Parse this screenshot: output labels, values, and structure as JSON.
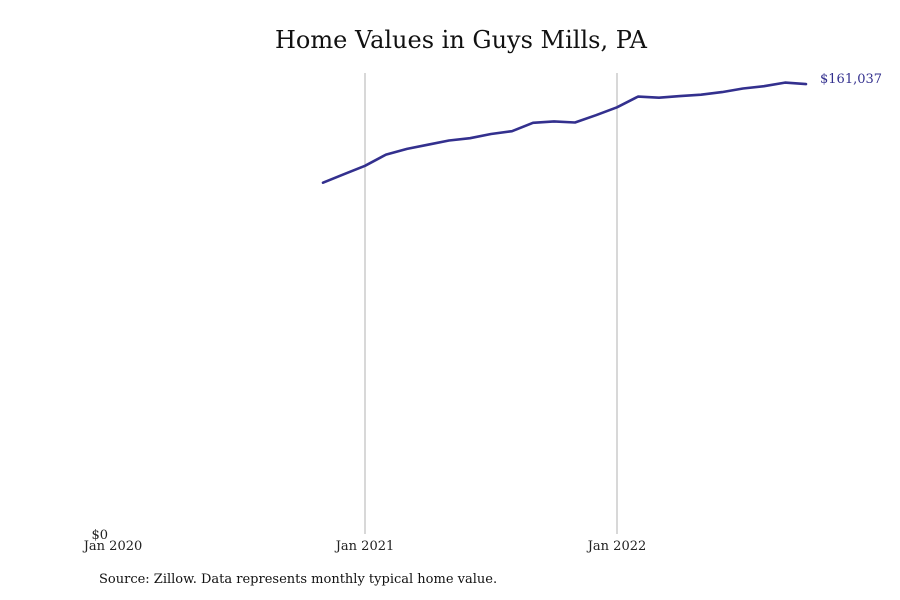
{
  "chart_data": {
    "type": "line",
    "title": "Home Values in Guys Mills, PA",
    "source": "Source: Zillow. Data represents monthly typical home value.",
    "xlabel": "",
    "ylabel": "",
    "x_range": [
      "2020-01",
      "2022-12"
    ],
    "ylim": [
      0,
      165000
    ],
    "x_ticks": [
      {
        "date": "2020-01",
        "label": "Jan 2020"
      },
      {
        "date": "2021-01",
        "label": "Jan 2021"
      },
      {
        "date": "2022-01",
        "label": "Jan 2022"
      }
    ],
    "y_ticks": [
      {
        "value": 0,
        "label": "$0"
      }
    ],
    "grid": {
      "vertical": [
        "2021-01",
        "2022-01"
      ],
      "horizontal": false
    },
    "legend": "none",
    "end_label": "$161,037",
    "series": [
      {
        "color": "#33308e",
        "points": [
          {
            "x": "2020-11",
            "y": 126000
          },
          {
            "x": "2020-12",
            "y": 129000
          },
          {
            "x": "2021-01",
            "y": 132000
          },
          {
            "x": "2021-02",
            "y": 136000
          },
          {
            "x": "2021-03",
            "y": 138000
          },
          {
            "x": "2021-04",
            "y": 139500
          },
          {
            "x": "2021-05",
            "y": 141000
          },
          {
            "x": "2021-06",
            "y": 141800
          },
          {
            "x": "2021-07",
            "y": 143300
          },
          {
            "x": "2021-08",
            "y": 144300
          },
          {
            "x": "2021-09",
            "y": 147300
          },
          {
            "x": "2021-10",
            "y": 147800
          },
          {
            "x": "2021-11",
            "y": 147400
          },
          {
            "x": "2021-12",
            "y": 150000
          },
          {
            "x": "2022-01",
            "y": 152800
          },
          {
            "x": "2022-02",
            "y": 156600
          },
          {
            "x": "2022-03",
            "y": 156200
          },
          {
            "x": "2022-04",
            "y": 156800
          },
          {
            "x": "2022-05",
            "y": 157300
          },
          {
            "x": "2022-06",
            "y": 158200
          },
          {
            "x": "2022-07",
            "y": 159500
          },
          {
            "x": "2022-08",
            "y": 160300
          },
          {
            "x": "2022-09",
            "y": 161600
          },
          {
            "x": "2022-10",
            "y": 161037
          }
        ]
      }
    ]
  }
}
